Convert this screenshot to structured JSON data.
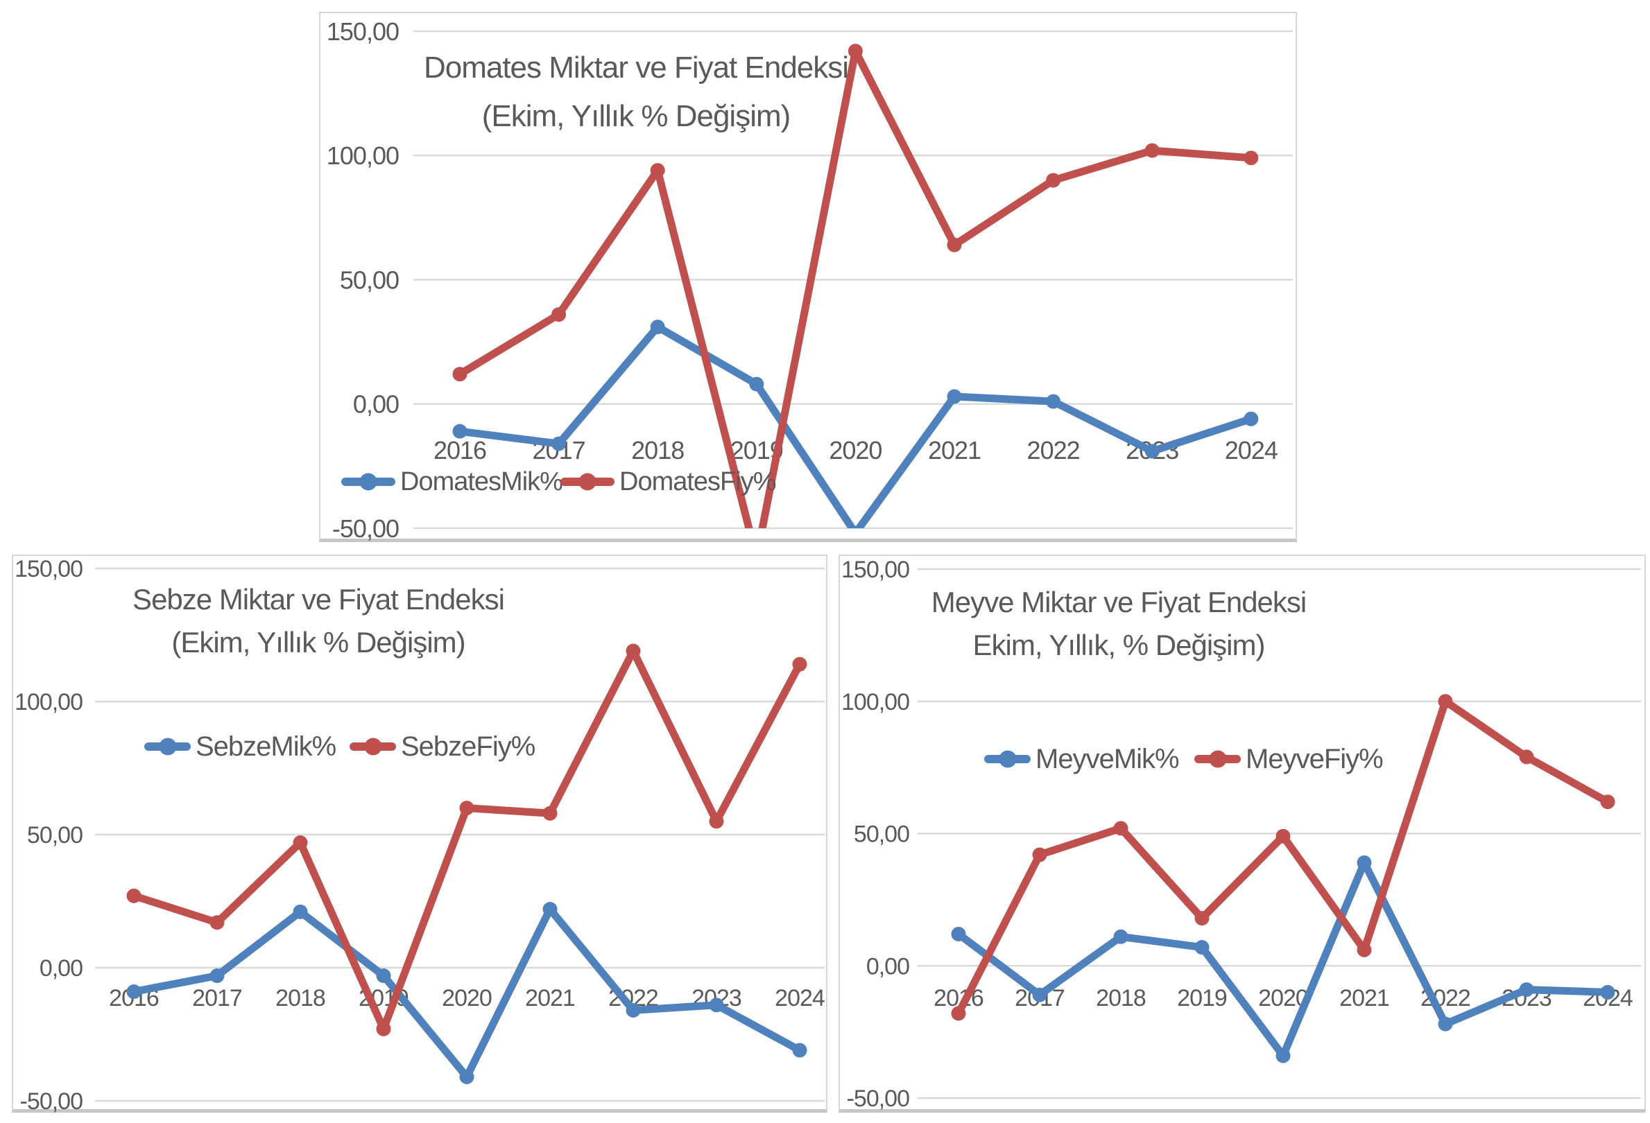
{
  "page": {
    "background_color": "#FFFFFF",
    "description_labels": {
      "decimal_style": "turkish-comma"
    }
  },
  "colors": {
    "series_blue": "#4F81BD",
    "series_red": "#C0504D",
    "text_gray": "#595959",
    "gridline_gray": "#D9D9D9"
  },
  "chart_data": [
    {
      "type": "line",
      "title": "Domates Miktar ve Fiyat Endeksi",
      "subtitle": "(Ekim, Yıllık % Değişim)",
      "categories": [
        "2016",
        "2017",
        "2018",
        "2019",
        "2020",
        "2021",
        "2022",
        "2023",
        "2024"
      ],
      "y_ticks": [
        "150,00",
        "100,00",
        "50,00",
        "0,00",
        "-50,00"
      ],
      "ylim": [
        -50,
        150
      ],
      "grid": true,
      "legend_position": "inside-bottom-left",
      "series": [
        {
          "name": "DomatesMik%",
          "color": "#4F81BD",
          "values": [
            -11,
            -16,
            31,
            8,
            -52,
            3,
            1,
            -19,
            -6
          ]
        },
        {
          "name": "DomatesFiy%",
          "color": "#C0504D",
          "values": [
            12,
            36,
            94,
            -62,
            142,
            64,
            90,
            102,
            99
          ]
        }
      ]
    },
    {
      "type": "line",
      "title": "Sebze Miktar ve Fiyat Endeksi",
      "subtitle": "(Ekim, Yıllık % Değişim)",
      "categories": [
        "2016",
        "2017",
        "2018",
        "2019",
        "2020",
        "2021",
        "2022",
        "2023",
        "2024"
      ],
      "y_ticks": [
        "150,00",
        "100,00",
        "50,00",
        "0,00",
        "-50,00"
      ],
      "ylim": [
        -50,
        150
      ],
      "grid": true,
      "legend_position": "inside-middle-left",
      "series": [
        {
          "name": "SebzeMik%",
          "color": "#4F81BD",
          "values": [
            -9,
            -3,
            21,
            -3,
            -41,
            22,
            -16,
            -14,
            -31
          ]
        },
        {
          "name": "SebzeFiy%",
          "color": "#C0504D",
          "values": [
            27,
            17,
            47,
            -23,
            60,
            58,
            119,
            55,
            114
          ]
        }
      ]
    },
    {
      "type": "line",
      "title": "Meyve Miktar ve Fiyat Endeksi",
      "subtitle": "Ekim, Yıllık, % Değişim)",
      "categories": [
        "2016",
        "2017",
        "2018",
        "2019",
        "2020",
        "2021",
        "2022",
        "2023",
        "2024"
      ],
      "y_ticks": [
        "150,00",
        "100,00",
        "50,00",
        "0,00",
        "-50,00"
      ],
      "ylim": [
        -50,
        150
      ],
      "grid": true,
      "legend_position": "inside-middle-left",
      "series": [
        {
          "name": "MeyveMik%",
          "color": "#4F81BD",
          "values": [
            12,
            -11,
            11,
            7,
            -34,
            39,
            -22,
            -9,
            -10
          ]
        },
        {
          "name": "MeyveFiy%",
          "color": "#C0504D",
          "values": [
            -18,
            42,
            52,
            18,
            49,
            6,
            100,
            79,
            62
          ]
        }
      ]
    }
  ]
}
